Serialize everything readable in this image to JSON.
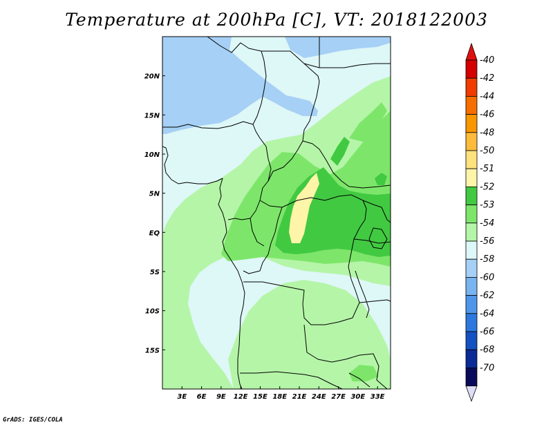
{
  "title": "Temperature at 200hPa [C], VT: 2018122003",
  "credit": "GrADS: IGES/COLA",
  "map": {
    "lon_range": [
      0,
      35
    ],
    "lat_range": [
      -20,
      25
    ],
    "x_ticks": [
      "3E",
      "6E",
      "9E",
      "12E",
      "15E",
      "18E",
      "21E",
      "24E",
      "27E",
      "30E",
      "33E"
    ],
    "y_ticks": [
      "20N",
      "15N",
      "10N",
      "5N",
      "EQ",
      "5S",
      "10S",
      "15S"
    ],
    "x_tick_values": [
      3,
      6,
      9,
      12,
      15,
      18,
      21,
      24,
      27,
      30,
      33
    ],
    "y_tick_values": [
      20,
      15,
      10,
      5,
      0,
      -5,
      -10,
      -15
    ]
  },
  "colors": {
    "c_56": "#a6d0f5",
    "c_54": "#def7f7",
    "c_53": "#b5f5a8",
    "c_52": "#7de66a",
    "c_51": "#42c942",
    "c_50": "#fff5a8"
  },
  "colorbar": {
    "labels": [
      "-40",
      "-42",
      "-44",
      "-46",
      "-48",
      "-50",
      "-51",
      "-52",
      "-53",
      "-54",
      "-56",
      "-58",
      "-60",
      "-62",
      "-64",
      "-66",
      "-68",
      "-70"
    ],
    "colors": [
      "#d40000",
      "#f03c00",
      "#f56e00",
      "#fa9600",
      "#fcbb3b",
      "#fee27d",
      "#fff5a8",
      "#42c942",
      "#7de66a",
      "#b5f5a8",
      "#def7f7",
      "#a6d0f5",
      "#78b4f0",
      "#4f96eb",
      "#2d78de",
      "#1452c2",
      "#0a2a96",
      "#0a0a5a"
    ],
    "top_arrow_color": "#e01010",
    "bottom_arrow_color": "#ddddf5"
  }
}
